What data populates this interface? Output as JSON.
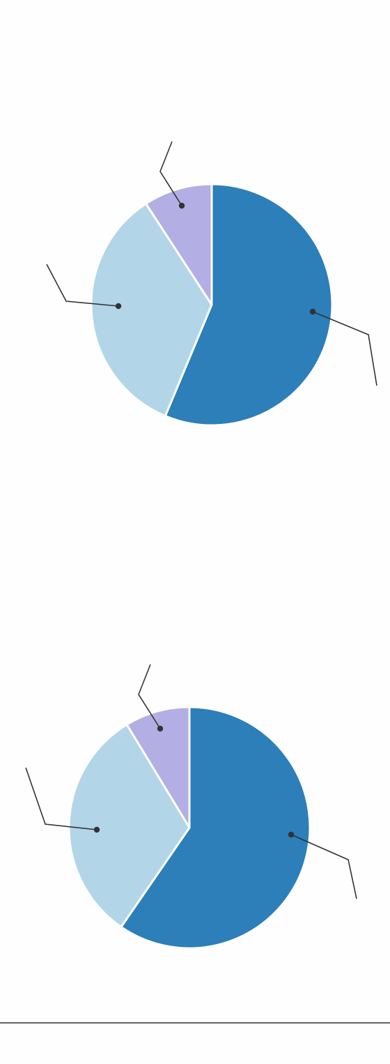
{
  "colors": {
    "background": "#fefefe",
    "slice_separator": "#ffffff",
    "leader": "#333333",
    "bottom_rule": "#333333"
  },
  "chart_data": [
    {
      "type": "pie",
      "direction": "clockwise",
      "legend": "none",
      "values": [
        56.3,
        34.5,
        9.2
      ],
      "colors": [
        "#2c7fb8",
        "#b3d5e8",
        "#b3aee3"
      ]
    },
    {
      "type": "pie",
      "direction": "clockwise",
      "legend": "none",
      "values": [
        59.6,
        31.7,
        8.7
      ],
      "colors": [
        "#2c7fb8",
        "#b3d5e8",
        "#b3aee3"
      ]
    }
  ]
}
